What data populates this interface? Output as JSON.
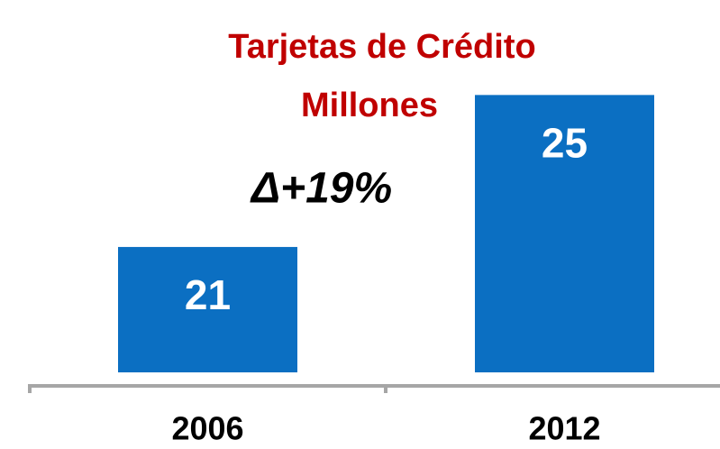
{
  "chart_data": {
    "type": "bar",
    "title": "Tarjetas de Crédito",
    "subtitle": "Millones",
    "annotation": "Δ+19%",
    "categories": [
      "2006",
      "2012"
    ],
    "values": [
      21,
      25
    ],
    "color": "#0b6fc2",
    "ylim": [
      17.7,
      27.5
    ]
  }
}
